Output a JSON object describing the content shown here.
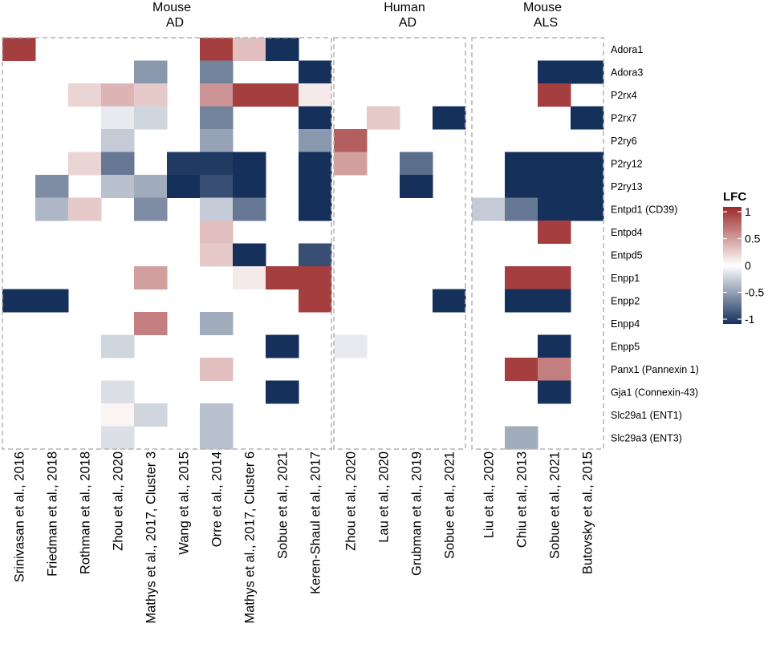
{
  "chart_data": {
    "type": "heatmap",
    "panels": [
      {
        "title_line1": "Mouse",
        "title_line2": "AD",
        "studies": [
          "Srinivasan et al., 2016",
          "Friedman et al., 2018",
          "Rothman et al., 2018",
          "Zhou et al., 2020",
          "Mathys et al., 2017, Cluster 3",
          "Wang et al., 2015",
          "Orre et al., 2014",
          "Mathys et al., 2017, Cluster 6",
          "Sobue et al., 2021",
          "Keren-Shaul et al., 2017"
        ]
      },
      {
        "title_line1": "Human",
        "title_line2": "AD",
        "studies": [
          "Zhou et al., 2020",
          "Lau et al., 2020",
          "Grubman et al., 2019",
          "Sobue et al., 2021"
        ]
      },
      {
        "title_line1": "Mouse",
        "title_line2": "ALS",
        "studies": [
          "Liu et al., 2020",
          "Chiu et al., 2013",
          "Sobue et al., 2021",
          "Butovsky et al., 2015"
        ]
      }
    ],
    "genes": [
      "Adora1",
      "Adora3",
      "P2rx4",
      "P2rx7",
      "P2ry6",
      "P2ry12",
      "P2ry13",
      "Entpd1 (CD39)",
      "Entpd4",
      "Entpd5",
      "Enpp1",
      "Enpp2",
      "Enpp4",
      "Enpp5",
      "Panx1 (Pannexin 1)",
      "Gja1 (Connexin-43)",
      "Slc29a1 (ENT1)",
      "Slc29a3 (ENT3)"
    ],
    "values": [
      [
        0.9,
        null,
        null,
        null,
        null,
        null,
        0.9,
        0.3,
        -1,
        null,
        null,
        null,
        null,
        null,
        null,
        null,
        null,
        null
      ],
      [
        null,
        null,
        null,
        null,
        -0.5,
        null,
        -0.6,
        null,
        null,
        -1,
        null,
        null,
        null,
        null,
        null,
        null,
        -1,
        -1
      ],
      [
        null,
        null,
        0.2,
        0.35,
        0.25,
        null,
        0.5,
        0.9,
        0.9,
        0.1,
        null,
        null,
        null,
        null,
        null,
        null,
        0.9,
        null
      ],
      [
        null,
        null,
        null,
        -0.1,
        -0.2,
        null,
        -0.6,
        null,
        null,
        -1,
        null,
        0.25,
        null,
        -1,
        null,
        null,
        null,
        -1
      ],
      [
        null,
        null,
        null,
        -0.25,
        null,
        null,
        -0.45,
        null,
        null,
        -0.5,
        0.75,
        null,
        null,
        null,
        null,
        null,
        null,
        null
      ],
      [
        null,
        null,
        0.2,
        -0.65,
        null,
        -0.95,
        -0.95,
        -1,
        null,
        -1,
        0.45,
        null,
        -0.7,
        null,
        null,
        -1,
        -1,
        -1
      ],
      [
        null,
        -0.55,
        null,
        -0.3,
        -0.4,
        -1,
        -0.85,
        -1,
        null,
        -1,
        null,
        null,
        -1,
        null,
        null,
        -1,
        -1,
        -1
      ],
      [
        null,
        -0.35,
        0.25,
        null,
        -0.55,
        null,
        -0.25,
        -0.65,
        null,
        -1,
        null,
        null,
        null,
        null,
        -0.25,
        -0.65,
        -1,
        -1
      ],
      [
        null,
        null,
        null,
        null,
        null,
        null,
        0.3,
        null,
        null,
        null,
        null,
        null,
        null,
        null,
        null,
        null,
        0.9,
        null
      ],
      [
        null,
        null,
        null,
        null,
        null,
        null,
        0.25,
        -1,
        null,
        -0.85,
        null,
        null,
        null,
        null,
        null,
        null,
        null,
        null
      ],
      [
        null,
        null,
        null,
        null,
        0.45,
        null,
        null,
        0.1,
        0.9,
        0.9,
        null,
        null,
        null,
        null,
        null,
        0.9,
        0.9,
        null
      ],
      [
        -1,
        -1,
        null,
        null,
        null,
        null,
        null,
        null,
        null,
        0.9,
        null,
        null,
        null,
        -1,
        null,
        -1,
        -1,
        null
      ],
      [
        null,
        null,
        null,
        null,
        0.6,
        null,
        -0.4,
        null,
        null,
        null,
        null,
        null,
        null,
        null,
        null,
        null,
        null,
        null
      ],
      [
        null,
        null,
        null,
        -0.2,
        null,
        null,
        null,
        null,
        -1,
        null,
        -0.1,
        null,
        null,
        null,
        null,
        null,
        -1,
        null
      ],
      [
        null,
        null,
        null,
        null,
        null,
        null,
        0.3,
        null,
        null,
        null,
        null,
        null,
        null,
        null,
        null,
        0.9,
        0.6,
        null
      ],
      [
        null,
        null,
        null,
        -0.15,
        null,
        null,
        null,
        null,
        -1,
        null,
        null,
        null,
        null,
        null,
        null,
        null,
        -1,
        null
      ],
      [
        null,
        null,
        null,
        0.05,
        -0.2,
        null,
        -0.3,
        null,
        null,
        null,
        null,
        null,
        null,
        null,
        null,
        null,
        null,
        null
      ],
      [
        null,
        null,
        null,
        -0.15,
        null,
        null,
        -0.3,
        null,
        null,
        null,
        null,
        null,
        null,
        null,
        null,
        -0.4,
        null,
        null
      ]
    ],
    "legend": {
      "title": "LFC",
      "ticks": [
        1,
        0.5,
        0,
        -0.5,
        -1
      ],
      "tick_labels": [
        "1",
        "0.5",
        "0",
        "-0.5",
        "-1"
      ],
      "range": [
        -1,
        1
      ]
    },
    "colors": {
      "high": "#9b2a2a",
      "mid": "#ffffff",
      "low": "#15305a",
      "panel_border": "#b3b3b3"
    }
  }
}
